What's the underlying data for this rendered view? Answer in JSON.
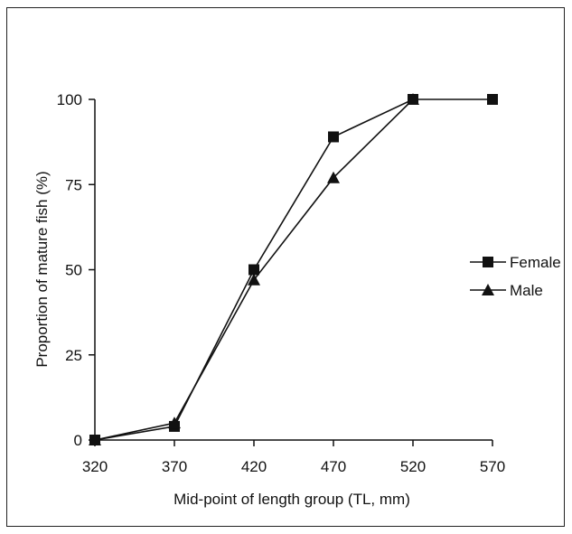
{
  "chart_data": {
    "type": "line",
    "title": "",
    "xlabel": "Mid-point of length group (TL, mm)",
    "ylabel": "Proportion of mature fish (%)",
    "x": [
      320,
      370,
      420,
      470,
      520,
      570
    ],
    "xlim": [
      320,
      570
    ],
    "ylim": [
      0,
      100
    ],
    "x_ticks": [
      "320",
      "370",
      "420",
      "470",
      "520",
      "570"
    ],
    "y_ticks": [
      "0",
      "25",
      "50",
      "75",
      "100"
    ],
    "grid": false,
    "legend_position": "right",
    "series": [
      {
        "name": "Female",
        "marker": "square",
        "color": "#111111",
        "x": [
          320,
          370,
          420,
          470,
          520,
          570
        ],
        "values": [
          0,
          4,
          50,
          89,
          100,
          100
        ]
      },
      {
        "name": "Male",
        "marker": "triangle",
        "color": "#111111",
        "x": [
          320,
          370,
          420,
          470,
          520
        ],
        "values": [
          0,
          5,
          47,
          77,
          100
        ]
      }
    ]
  }
}
